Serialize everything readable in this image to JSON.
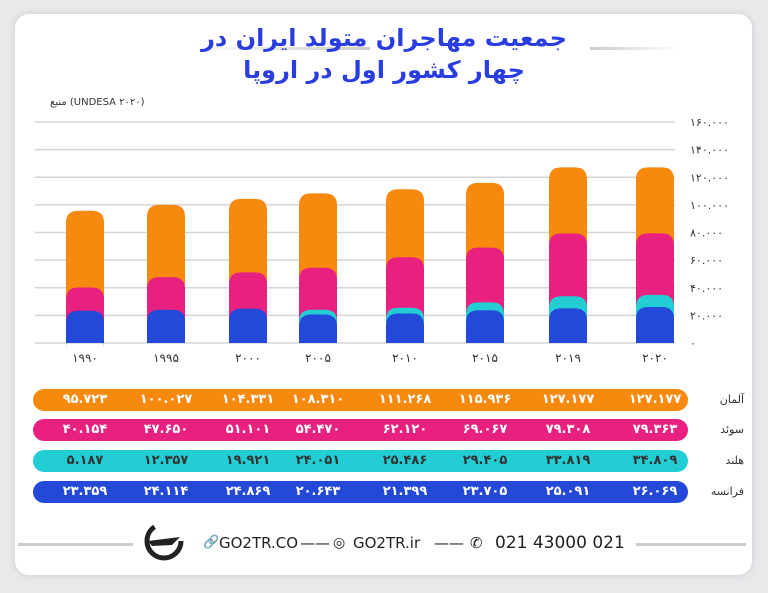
{
  "chart_data": {
    "type": "bar",
    "title": "جمعیت مهاجران متولد ایران در چهار کشور اول در اروپا",
    "source": "(UNDESA ۲۰۲۰) منبع",
    "categories": [
      "۱۹۹۰",
      "۱۹۹۵",
      "۲۰۰۰",
      "۲۰۰۵",
      "۲۰۱۰",
      "۲۰۱۵",
      "۲۰۱۹",
      "۲۰۲۰"
    ],
    "ylim": [
      0,
      160000
    ],
    "yticks": [
      "۰",
      "۲۰.۰۰۰",
      "۴۰.۰۰۰",
      "۶۰.۰۰۰",
      "۸۰.۰۰۰",
      "۱۰۰.۰۰۰",
      "۱۲۰.۰۰۰",
      "۱۴۰.۰۰۰",
      "۱۶۰.۰۰۰"
    ],
    "grid": true,
    "series": [
      {
        "name": "آلمان",
        "color": "#f7890f",
        "values": [
          95723,
          100027,
          104331,
          108310,
          111268,
          115936,
          127177,
          127177
        ],
        "labels": [
          "۹۵.۷۲۳",
          "۱۰۰.۰۲۷",
          "۱۰۴.۳۳۱",
          "۱۰۸.۳۱۰",
          "۱۱۱.۲۶۸",
          "۱۱۵.۹۳۶",
          "۱۲۷.۱۷۷",
          "۱۲۷.۱۷۷"
        ]
      },
      {
        "name": "سوئد",
        "color": "#e8207f",
        "values": [
          40154,
          47650,
          51101,
          54470,
          62120,
          69067,
          79308,
          79363
        ],
        "labels": [
          "۴۰.۱۵۴",
          "۴۷.۶۵۰",
          "۵۱.۱۰۱",
          "۵۴.۴۷۰",
          "۶۲.۱۲۰",
          "۶۹.۰۶۷",
          "۷۹.۳۰۸",
          "۷۹.۳۶۳"
        ]
      },
      {
        "name": "هلند",
        "color": "#22cdd3",
        "values": [
          5187,
          12357,
          19921,
          24051,
          25486,
          29405,
          33819,
          34809
        ],
        "labels": [
          "۵.۱۸۷",
          "۱۲.۳۵۷",
          "۱۹.۹۲۱",
          "۲۴.۰۵۱",
          "۲۵.۴۸۶",
          "۲۹.۴۰۵",
          "۳۳.۸۱۹",
          "۳۴.۸۰۹"
        ]
      },
      {
        "name": "فرانسه",
        "color": "#2449d8",
        "values": [
          23359,
          24114,
          24869,
          20643,
          21399,
          23705,
          25091,
          26069
        ],
        "labels": [
          "۲۳.۳۵۹",
          "۲۴.۱۱۴",
          "۲۴.۸۶۹",
          "۲۰.۶۴۳",
          "۲۱.۳۹۹",
          "۲۳.۷۰۵",
          "۲۵.۰۹۱",
          "۲۶.۰۶۹"
        ]
      }
    ]
  },
  "footer": {
    "website": "GO2TR.CO",
    "instagram": "GO2TR.ir",
    "phone": "021 43000 021"
  }
}
